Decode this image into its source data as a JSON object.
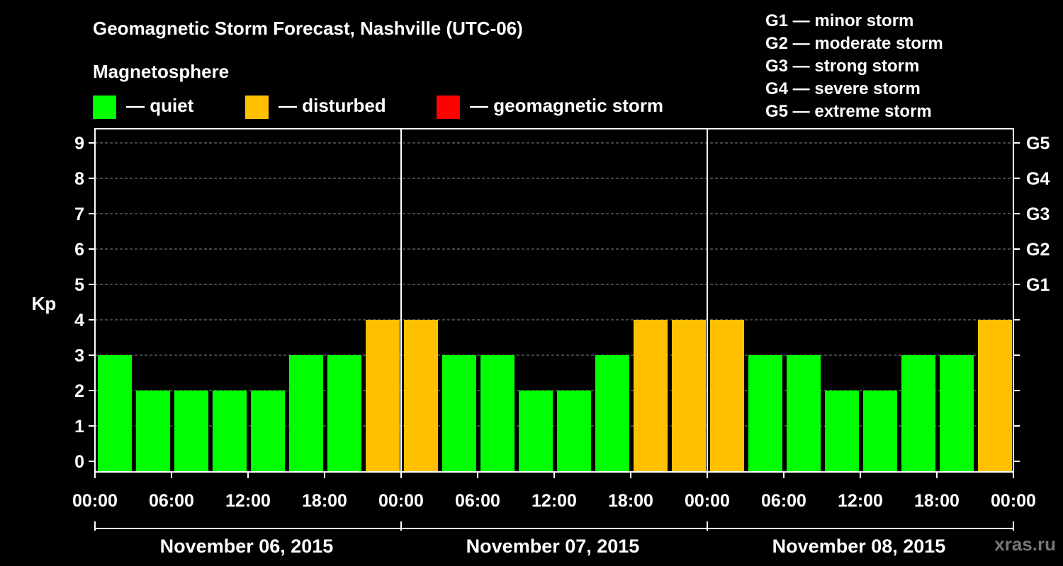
{
  "title": "Geomagnetic Storm Forecast, Nashville (UTC-06)",
  "legend": {
    "heading": "Magnetosphere",
    "items": [
      {
        "label": "— quiet",
        "color": "#00ff00"
      },
      {
        "label": "— disturbed",
        "color": "#ffc000"
      },
      {
        "label": "— geomagnetic storm",
        "color": "#ff0000"
      }
    ]
  },
  "g_scale": [
    "G1 — minor storm",
    "G2 — moderate storm",
    "G3 — strong storm",
    "G4 — severe storm",
    "G5 — extreme storm"
  ],
  "watermark": "xras.ru",
  "chart_data": {
    "type": "bar",
    "ylabel": "Kp",
    "ylim": [
      0,
      9
    ],
    "yticks": [
      "0",
      "1",
      "2",
      "3",
      "4",
      "5",
      "6",
      "7",
      "8",
      "9"
    ],
    "right_axis_labels": [
      {
        "kp": 5,
        "label": "G1"
      },
      {
        "kp": 6,
        "label": "G2"
      },
      {
        "kp": 7,
        "label": "G3"
      },
      {
        "kp": 8,
        "label": "G4"
      },
      {
        "kp": 9,
        "label": "G5"
      }
    ],
    "xtick_labels": [
      "00:00",
      "06:00",
      "12:00",
      "18:00",
      "00:00",
      "06:00",
      "12:00",
      "18:00",
      "00:00",
      "06:00",
      "12:00",
      "18:00",
      "00:00"
    ],
    "days": [
      "November 06, 2015",
      "November 07, 2015",
      "November 08, 2015"
    ],
    "interval_hours": 3,
    "grid": true,
    "values": [
      3,
      2,
      2,
      2,
      2,
      3,
      3,
      4,
      4,
      3,
      3,
      2,
      2,
      3,
      4,
      4,
      4,
      3,
      3,
      2,
      2,
      3,
      3,
      4
    ],
    "colors": {
      "quiet": "#00ff00",
      "disturbed": "#ffc000",
      "storm": "#ff0000"
    }
  }
}
